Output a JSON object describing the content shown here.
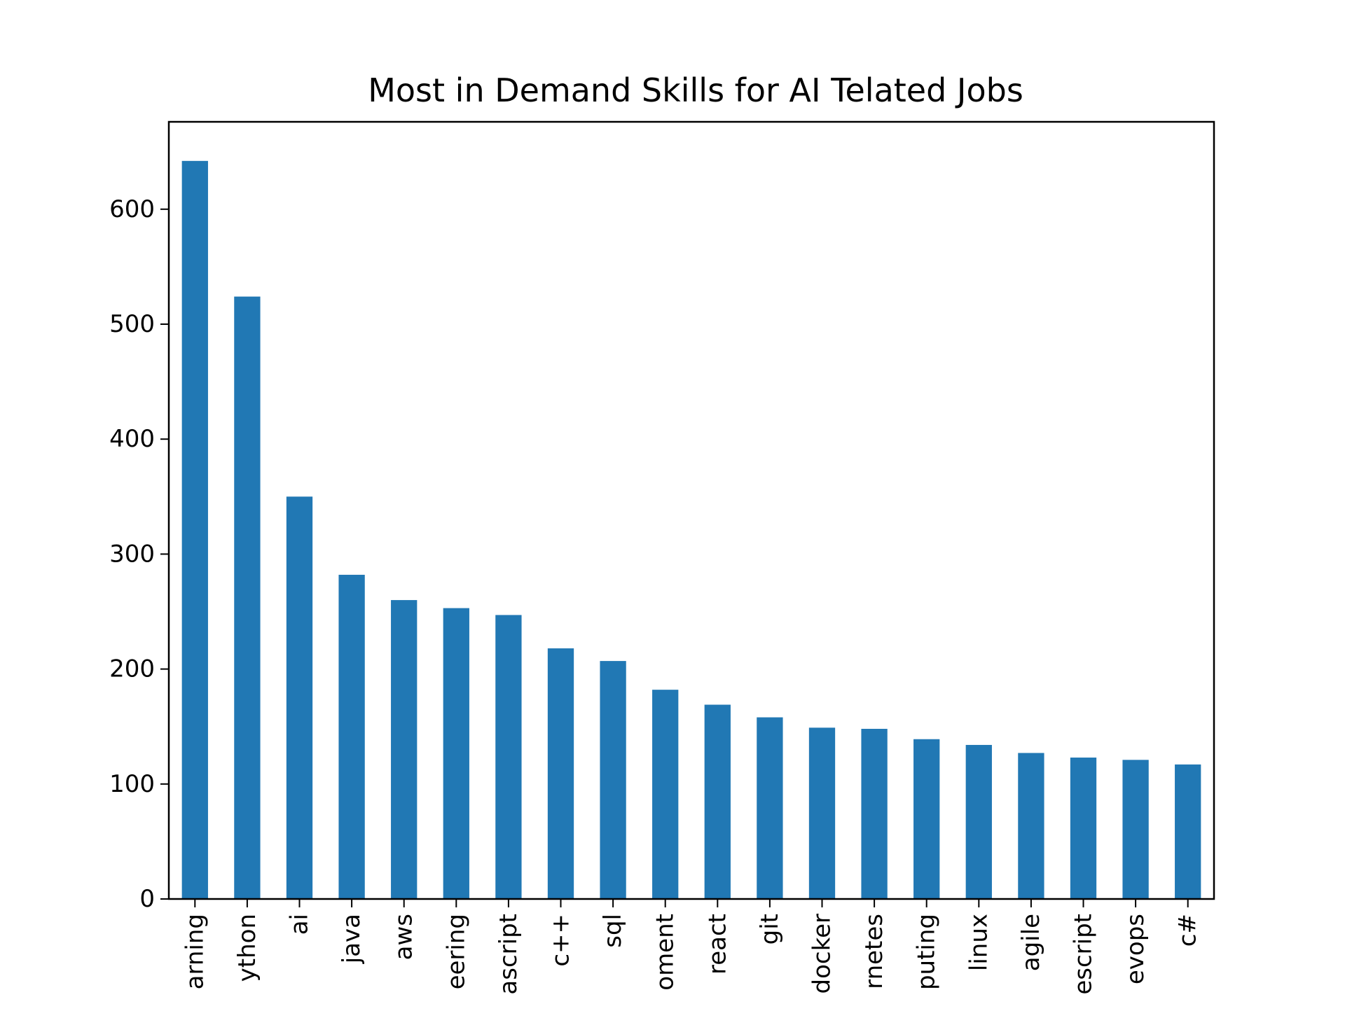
{
  "chart_data": {
    "type": "bar",
    "title": "Most in Demand Skills for AI Telated Jobs",
    "xlabel": "",
    "ylabel": "",
    "categories": [
      "arning",
      "ython",
      "ai",
      "java",
      "aws",
      "eering",
      "ascript",
      "c++",
      "sql",
      "oment",
      "react",
      "git",
      "docker",
      "rnetes",
      "puting",
      "linux",
      "agile",
      "escript",
      "evops",
      "c#"
    ],
    "values": [
      642,
      524,
      350,
      282,
      260,
      253,
      247,
      218,
      207,
      182,
      169,
      158,
      149,
      148,
      139,
      134,
      127,
      123,
      121,
      117
    ],
    "ylim": [
      0,
      676
    ],
    "yticks": [
      0,
      100,
      200,
      300,
      400,
      500,
      600
    ],
    "grid": false,
    "legend": "none",
    "bar_color": "#2178b4"
  }
}
